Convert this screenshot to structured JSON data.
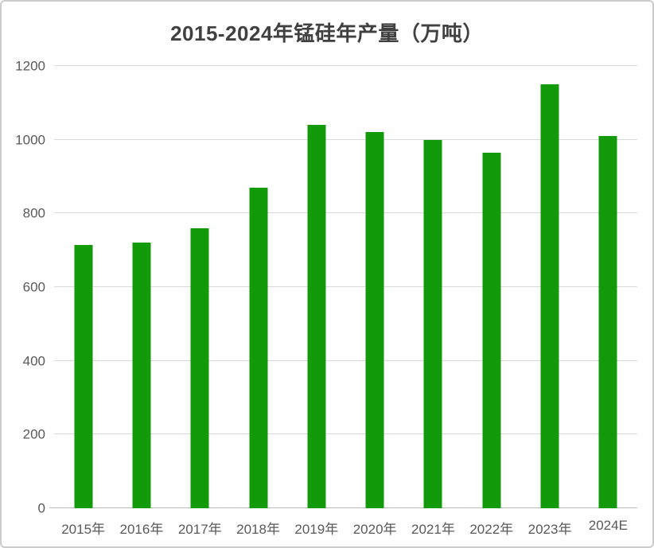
{
  "chart_data": {
    "type": "bar",
    "title": "2015-2024年锰硅年产量（万吨）",
    "categories": [
      "2015年",
      "2016年",
      "2017年",
      "2018年",
      "2019年",
      "2020年",
      "2021年",
      "2022年",
      "2023年",
      "2024E"
    ],
    "values": [
      715,
      720,
      760,
      870,
      1040,
      1020,
      1000,
      965,
      1150,
      1010
    ],
    "xlabel": "",
    "ylabel": "",
    "ylim": [
      0,
      1200
    ],
    "yticks": [
      0,
      200,
      400,
      600,
      800,
      1000,
      1200
    ],
    "grid": "horizontal",
    "legend_position": "none",
    "colors": {
      "bar": "#129a0b",
      "gridline": "#d9d9d9",
      "axis_line": "#bfbfbf",
      "tick_label": "#595959",
      "title": "#404040",
      "background": "#ffffff",
      "card_border": "#cbcbcb"
    }
  }
}
